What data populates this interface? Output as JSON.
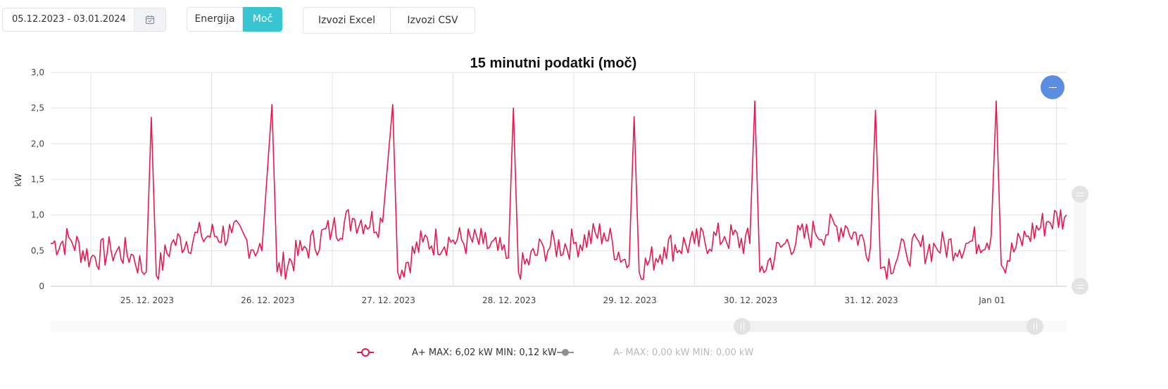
{
  "toolbar": {
    "date_range": "05.12.2023 - 03.01.2024",
    "calendar_icon": "calendar-icon",
    "energija_label": "Energija",
    "moc_label": "Moč",
    "excel_label": "Izvozi Excel",
    "csv_label": "Izvozi CSV",
    "active_color": "#37c5d1"
  },
  "zoom": {
    "icon": "zoom-out-icon",
    "color": "#5b8ee0"
  },
  "legend": {
    "a_plus": "A+ MAX: 6,02 kW MIN: 0,12 kW",
    "a_minus": "A- MAX: 0,00 kW MIN: 0,00 kW"
  },
  "chart_data": {
    "type": "line",
    "title": "15 minutni podatki (moč)",
    "ylabel": "kW",
    "xlabel": "",
    "ylim": [
      0,
      3
    ],
    "y_ticks": [
      "0",
      "0,5",
      "1,0",
      "1,5",
      "2,0",
      "2,5",
      "3,0"
    ],
    "x_tick_labels": [
      "25. 12. 2023",
      "26. 12. 2023",
      "27. 12. 2023",
      "28. 12. 2023",
      "29. 12. 2023",
      "30. 12. 2023",
      "31. 12. 2023",
      "Jan 01"
    ],
    "x_range": [
      "2023-12-24 04:00",
      "2024-01-01 14:00"
    ],
    "grid": true,
    "series": [
      {
        "name": "A+",
        "color": "#e8174f",
        "points": [
          [
            "2023-12-24 04:00",
            0.6
          ],
          [
            "2023-12-24 08:00",
            0.65
          ],
          [
            "2023-12-24 12:00",
            0.4
          ],
          [
            "2023-12-24 16:00",
            0.5
          ],
          [
            "2023-12-24 20:00",
            0.45
          ],
          [
            "2023-12-24 23:00",
            0.2
          ],
          [
            "2023-12-25 00:00",
            2.37
          ],
          [
            "2023-12-25 01:00",
            0.15
          ],
          [
            "2023-12-25 04:00",
            0.6
          ],
          [
            "2023-12-25 10:00",
            0.7
          ],
          [
            "2023-12-25 16:00",
            0.75
          ],
          [
            "2023-12-25 22:00",
            0.5
          ],
          [
            "2023-12-26 00:00",
            2.55
          ],
          [
            "2023-12-26 01:00",
            0.2
          ],
          [
            "2023-12-26 06:00",
            0.5
          ],
          [
            "2023-12-26 12:00",
            0.8
          ],
          [
            "2023-12-26 16:00",
            0.95
          ],
          [
            "2023-12-26 22:00",
            0.9
          ],
          [
            "2023-12-27 00:00",
            2.55
          ],
          [
            "2023-12-27 01:00",
            0.2
          ],
          [
            "2023-12-27 06:00",
            0.62
          ],
          [
            "2023-12-27 12:00",
            0.65
          ],
          [
            "2023-12-27 18:00",
            0.6
          ],
          [
            "2023-12-27 23:00",
            0.4
          ],
          [
            "2023-12-28 00:00",
            2.5
          ],
          [
            "2023-12-28 01:00",
            0.2
          ],
          [
            "2023-12-28 06:00",
            0.55
          ],
          [
            "2023-12-28 12:00",
            0.6
          ],
          [
            "2023-12-28 18:00",
            0.75
          ],
          [
            "2023-12-28 23:00",
            0.3
          ],
          [
            "2023-12-29 00:00",
            2.38
          ],
          [
            "2023-12-29 01:00",
            0.2
          ],
          [
            "2023-12-29 06:00",
            0.55
          ],
          [
            "2023-12-29 12:00",
            0.6
          ],
          [
            "2023-12-29 18:00",
            0.7
          ],
          [
            "2023-12-29 23:00",
            0.6
          ],
          [
            "2023-12-30 00:00",
            2.6
          ],
          [
            "2023-12-30 01:00",
            0.2
          ],
          [
            "2023-12-30 06:00",
            0.6
          ],
          [
            "2023-12-30 12:00",
            0.75
          ],
          [
            "2023-12-30 18:00",
            0.85
          ],
          [
            "2023-12-30 23:00",
            0.55
          ],
          [
            "2023-12-31 00:00",
            2.47
          ],
          [
            "2023-12-31 01:00",
            0.25
          ],
          [
            "2023-12-31 06:00",
            0.5
          ],
          [
            "2023-12-31 12:00",
            0.55
          ],
          [
            "2023-12-31 18:00",
            0.6
          ],
          [
            "2023-12-31 23:00",
            0.7
          ],
          [
            "2024-01-01 00:00",
            2.6
          ],
          [
            "2024-01-01 01:00",
            0.3
          ],
          [
            "2024-01-01 06:00",
            0.7
          ],
          [
            "2024-01-01 10:00",
            0.9
          ],
          [
            "2024-01-01 14:00",
            1.0
          ]
        ]
      },
      {
        "name": "A-",
        "color": "#909090",
        "points": []
      }
    ]
  }
}
